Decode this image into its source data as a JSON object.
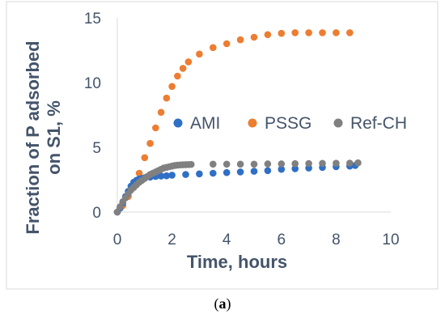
{
  "chart_data": {
    "type": "scatter",
    "xlabel": "Time, hours",
    "ylabel": "Fraction of P adsorbed on S1, %",
    "xlim": [
      0,
      10
    ],
    "ylim": [
      0,
      15
    ],
    "xticks": [
      0,
      2,
      4,
      6,
      8,
      10
    ],
    "yticks": [
      0,
      5,
      10,
      15
    ],
    "grid": false,
    "legend": "inside-center-right",
    "series": [
      {
        "name": "AMI",
        "color": "#2f6fc6",
        "x": [
          0,
          0.1,
          0.2,
          0.3,
          0.4,
          0.5,
          0.6,
          0.7,
          0.8,
          0.9,
          1.0,
          1.2,
          1.4,
          1.6,
          1.8,
          2.0,
          2.5,
          3.0,
          3.5,
          4.0,
          4.5,
          5.0,
          5.5,
          6.0,
          6.5,
          7.0,
          7.5,
          8.0,
          8.5,
          8.7
        ],
        "y": [
          0,
          0.3,
          0.7,
          1.2,
          1.6,
          2.0,
          2.3,
          2.45,
          2.55,
          2.6,
          2.65,
          2.7,
          2.75,
          2.78,
          2.8,
          2.85,
          2.9,
          2.95,
          3.0,
          3.05,
          3.1,
          3.15,
          3.2,
          3.3,
          3.35,
          3.4,
          3.45,
          3.5,
          3.55,
          3.6
        ]
      },
      {
        "name": "PSSG",
        "color": "#ed7d31",
        "x": [
          0,
          0.2,
          0.4,
          0.6,
          0.8,
          1.0,
          1.2,
          1.4,
          1.6,
          1.8,
          2.0,
          2.2,
          2.4,
          2.6,
          3.0,
          3.5,
          4.0,
          4.5,
          5.0,
          5.5,
          6.0,
          6.5,
          7.0,
          7.5,
          8.0,
          8.5
        ],
        "y": [
          0,
          0.5,
          1.2,
          2.0,
          3.0,
          4.2,
          5.3,
          6.5,
          7.7,
          8.8,
          9.7,
          10.5,
          11.1,
          11.6,
          12.2,
          12.7,
          13.0,
          13.3,
          13.5,
          13.7,
          13.8,
          13.85,
          13.85,
          13.85,
          13.85,
          13.85
        ]
      },
      {
        "name": "Ref-CH",
        "color": "#808080",
        "x": [
          0,
          0.1,
          0.2,
          0.3,
          0.4,
          0.5,
          0.6,
          0.7,
          0.8,
          0.9,
          1.0,
          1.1,
          1.2,
          1.3,
          1.4,
          1.5,
          1.6,
          1.7,
          1.8,
          1.9,
          2.0,
          2.1,
          2.2,
          2.3,
          2.4,
          2.5,
          2.6,
          2.7,
          3.5,
          4.0,
          4.5,
          5.0,
          5.5,
          6.0,
          6.5,
          7.0,
          7.5,
          8.0,
          8.5,
          8.8
        ],
        "y": [
          0,
          0.4,
          0.8,
          1.1,
          1.4,
          1.7,
          1.9,
          2.1,
          2.3,
          2.45,
          2.6,
          2.75,
          2.9,
          3.0,
          3.1,
          3.2,
          3.3,
          3.4,
          3.45,
          3.5,
          3.55,
          3.6,
          3.62,
          3.64,
          3.65,
          3.66,
          3.67,
          3.68,
          3.7,
          3.7,
          3.7,
          3.7,
          3.72,
          3.72,
          3.74,
          3.75,
          3.76,
          3.77,
          3.78,
          3.8
        ]
      }
    ]
  },
  "caption": {
    "open": "(",
    "letter": "a",
    "close": ")"
  }
}
